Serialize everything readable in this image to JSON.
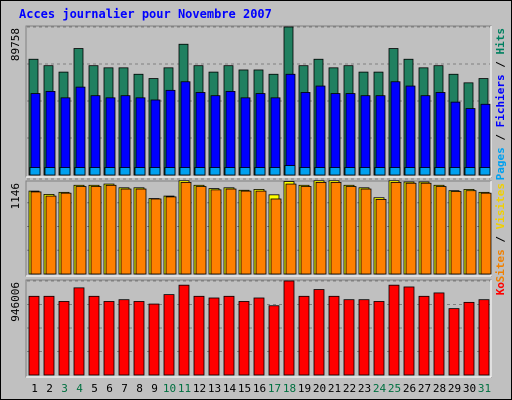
{
  "chart_data": {
    "type": "bar",
    "title": "Acces journalier pour Novembre 2007",
    "x": [
      1,
      2,
      3,
      4,
      5,
      6,
      7,
      8,
      9,
      10,
      11,
      12,
      13,
      14,
      15,
      16,
      17,
      18,
      19,
      20,
      21,
      22,
      23,
      24,
      25,
      26,
      27,
      28,
      29,
      30,
      31
    ],
    "weekend_days": [
      3,
      4,
      10,
      11,
      17,
      18,
      24,
      25,
      31
    ],
    "panels": [
      {
        "id": "top",
        "ymax_label": "89758",
        "ymax": 89758,
        "side_labels": [
          {
            "text": "Pages",
            "color": "#00a0f0"
          },
          {
            "text": " / ",
            "color": "#000000"
          },
          {
            "text": "Fichiers",
            "color": "#0000ff"
          },
          {
            "text": " / ",
            "color": "#000000"
          },
          {
            "text": "Hits",
            "color": "#008060"
          }
        ],
        "series": [
          {
            "name": "Hits",
            "color": "#208060",
            "values": [
              70200,
              66300,
              62400,
              76700,
              66300,
              65000,
              65000,
              61100,
              58500,
              65000,
              79300,
              66300,
              62400,
              66300,
              63700,
              63700,
              61100,
              89758,
              66300,
              70200,
              65000,
              66300,
              62400,
              62400,
              76700,
              70200,
              65000,
              66300,
              61100,
              55900,
              58500
            ]
          },
          {
            "name": "Fichiers",
            "color": "#0000ff",
            "values": [
              49400,
              50700,
              46800,
              53300,
              48100,
              46800,
              48100,
              46800,
              45500,
              51350,
              56550,
              50050,
              48100,
              50700,
              46800,
              49400,
              46800,
              61100,
              50050,
              53950,
              49400,
              49400,
              48100,
              48100,
              56550,
              53950,
              48100,
              50050,
              44200,
              40300,
              42900
            ]
          },
          {
            "name": "Pages",
            "color": "#00a0f0",
            "values": [
              4500,
              4500,
              4500,
              4500,
              4500,
              4500,
              4500,
              4500,
              4500,
              4500,
              4500,
              4500,
              4500,
              4500,
              4500,
              4500,
              4500,
              5700,
              4500,
              4500,
              4500,
              4500,
              4500,
              4500,
              4500,
              4500,
              4500,
              4500,
              4500,
              4500,
              4500
            ]
          }
        ]
      },
      {
        "id": "middle",
        "ymax_label": "1146",
        "ymax": 1146,
        "side_labels": [
          {
            "text": "Sites",
            "color": "#f08000"
          },
          {
            "text": " / ",
            "color": "#000000"
          },
          {
            "text": "Visites",
            "color": "#f0d000"
          }
        ],
        "series": [
          {
            "name": "Visites",
            "color": "#ffff00",
            "values": [
              1000,
              960,
              985,
              1070,
              1070,
              1085,
              1040,
              1040,
              910,
              940,
              1125,
              1070,
              1030,
              1040,
              1010,
              1020,
              955,
              1115,
              1070,
              1125,
              1125,
              1070,
              1040,
              920,
              1125,
              1110,
              1110,
              1070,
              1005,
              1020,
              985
            ]
          },
          {
            "name": "Sites",
            "color": "#ff8000",
            "values": [
              990,
              940,
              975,
              1055,
              1055,
              1070,
              1025,
              1025,
              905,
              930,
              1105,
              1055,
              1015,
              1025,
              1000,
              1000,
              905,
              1085,
              1055,
              1105,
              1105,
              1055,
              1025,
              900,
              1105,
              1095,
              1095,
              1055,
              995,
              1005,
              975
            ]
          }
        ]
      },
      {
        "id": "bottom",
        "ymax_label": "946006",
        "ymax": 946006,
        "side_labels": [
          {
            "text": "Ko",
            "color": "#ff0000"
          }
        ],
        "series": [
          {
            "name": "Ko",
            "color": "#ff0000",
            "values": [
              792000,
              792000,
              740000,
              877000,
              792000,
              740000,
              758000,
              740000,
              714000,
              809000,
              904000,
              792000,
              775000,
              792000,
              740000,
              775000,
              697000,
              946006,
              792000,
              860000,
              792000,
              758000,
              758000,
              740000,
              904000,
              886000,
              792000,
              826000,
              668000,
              731000,
              758000
            ]
          }
        ]
      }
    ],
    "grid": "dashed"
  },
  "colors": {
    "frame_bg": "#c0c0c0",
    "weekday_label": "#000000",
    "weekend_label": "#007040",
    "title": "#0000ff"
  }
}
